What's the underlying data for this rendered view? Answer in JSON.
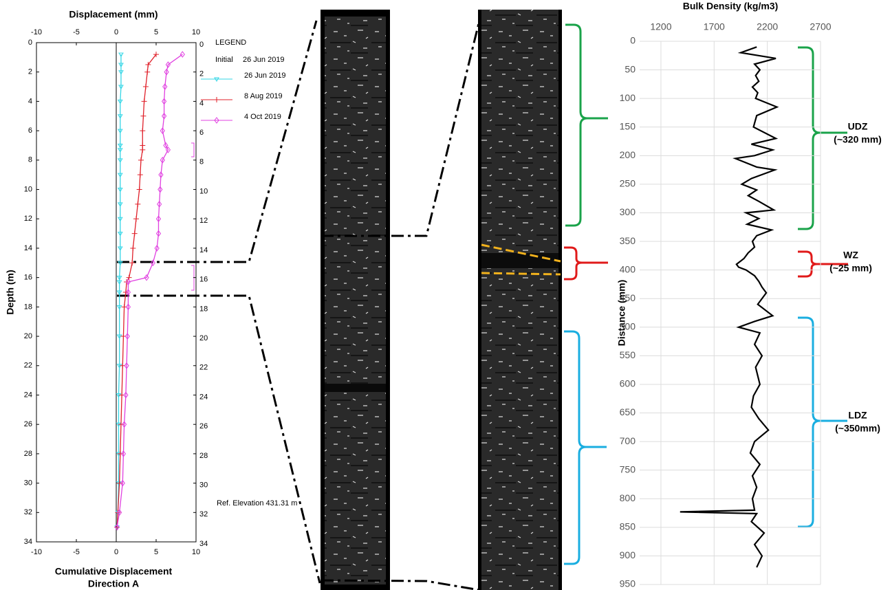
{
  "chart_data": [
    {
      "type": "line",
      "x_title": "Displacement (mm)",
      "x_label": [
        "Cumulative Displacement",
        "Direction A"
      ],
      "y_label": "Depth (m)",
      "legend_title": "LEGEND",
      "legend_initial": [
        "Initial",
        "26 Jun 2019"
      ],
      "reference": "Ref. Elevation 431.31 m",
      "xlim": [
        -10,
        10
      ],
      "xticks": [
        -10,
        -5,
        0,
        5,
        10
      ],
      "ylim": [
        0,
        34
      ],
      "yticks": [
        0,
        2,
        4,
        6,
        8,
        10,
        12,
        14,
        16,
        18,
        20,
        22,
        24,
        26,
        28,
        30,
        32,
        34
      ],
      "depth": [
        0.8,
        1.5,
        2,
        3,
        4,
        5,
        6,
        7,
        7.3,
        8,
        9,
        10,
        11,
        12,
        13,
        14,
        15,
        16,
        16.3,
        17,
        18,
        20,
        22,
        24,
        26,
        28,
        30,
        32,
        33
      ],
      "series": [
        {
          "name": "26 Jun 2019",
          "color": "#33d6e6",
          "marker": "triangle",
          "values": [
            0.6,
            0.6,
            0.6,
            0.6,
            0.5,
            0.5,
            0.5,
            0.5,
            0.5,
            0.5,
            0.5,
            0.5,
            0.5,
            0.5,
            0.5,
            0.5,
            0.5,
            0.4,
            0.4,
            0.4,
            0.4,
            0.4,
            0.4,
            0.3,
            0.3,
            0.3,
            0.3,
            0.2,
            0.1
          ]
        },
        {
          "name": "8 Aug 2019",
          "color": "#e0202a",
          "marker": "plus",
          "values": [
            5.0,
            4.0,
            3.9,
            3.7,
            3.5,
            3.4,
            3.3,
            3.3,
            3.3,
            3.1,
            3.0,
            2.9,
            2.7,
            2.5,
            2.3,
            2.1,
            2.0,
            1.6,
            1.3,
            1.2,
            1.0,
            0.9,
            0.8,
            0.7,
            0.6,
            0.5,
            0.4,
            0.2,
            0.1
          ]
        },
        {
          "name": "4 Oct 2019",
          "color": "#e040e0",
          "marker": "diamond",
          "values": [
            8.3,
            6.5,
            6.3,
            6.1,
            6.0,
            6.0,
            5.8,
            6.2,
            6.5,
            5.8,
            5.6,
            5.5,
            5.4,
            5.3,
            5.3,
            5.1,
            4.6,
            3.8,
            1.5,
            1.5,
            1.5,
            1.4,
            1.3,
            1.2,
            1.0,
            0.9,
            0.8,
            0.4,
            0.1
          ]
        }
      ]
    },
    {
      "type": "line",
      "x_title": "Bulk Density (kg/m3)",
      "y_label": "Distance (mm)",
      "xlim": [
        1000,
        2700
      ],
      "xticks": [
        1200,
        1700,
        2200,
        2700
      ],
      "ylim": [
        0,
        950
      ],
      "yticks": [
        0,
        50,
        100,
        150,
        200,
        250,
        300,
        350,
        400,
        450,
        500,
        550,
        600,
        650,
        700,
        750,
        800,
        850,
        900,
        950
      ],
      "grid": true,
      "color": "#000000",
      "y": [
        10,
        20,
        30,
        40,
        50,
        60,
        70,
        80,
        90,
        100,
        115,
        130,
        150,
        170,
        180,
        190,
        200,
        205,
        220,
        225,
        240,
        250,
        260,
        270,
        280,
        295,
        300,
        310,
        320,
        330,
        340,
        350,
        360,
        370,
        380,
        390,
        395,
        400,
        410,
        420,
        430,
        440,
        460,
        480,
        490,
        500,
        510,
        530,
        550,
        570,
        600,
        620,
        640,
        660,
        680,
        700,
        720,
        740,
        760,
        780,
        800,
        820,
        823,
        826,
        840,
        860,
        880,
        900,
        920
      ],
      "values": [
        2100,
        1950,
        2280,
        2080,
        2130,
        2090,
        2120,
        2060,
        2110,
        2090,
        2290,
        2100,
        2070,
        2280,
        2050,
        2250,
        2080,
        1900,
        2100,
        2270,
        2050,
        1960,
        2100,
        2020,
        2120,
        2260,
        2000,
        2120,
        2010,
        2240,
        2100,
        2060,
        2080,
        2020,
        1980,
        1910,
        1930,
        2000,
        2080,
        2120,
        2150,
        2190,
        2110,
        2250,
        2080,
        1930,
        2130,
        2080,
        2150,
        2090,
        2130,
        2070,
        2050,
        2120,
        2210,
        2080,
        2040,
        2130,
        2060,
        2100,
        2060,
        2080,
        1380,
        2100,
        2050,
        2170,
        2080,
        2150,
        2100
      ],
      "annotations": [
        {
          "label": "UDZ",
          "range": "(~320 mm)"
        },
        {
          "label": "WZ",
          "range": "(~25 mm)"
        },
        {
          "label": "LDZ",
          "range": "(~350mm)"
        }
      ]
    }
  ]
}
